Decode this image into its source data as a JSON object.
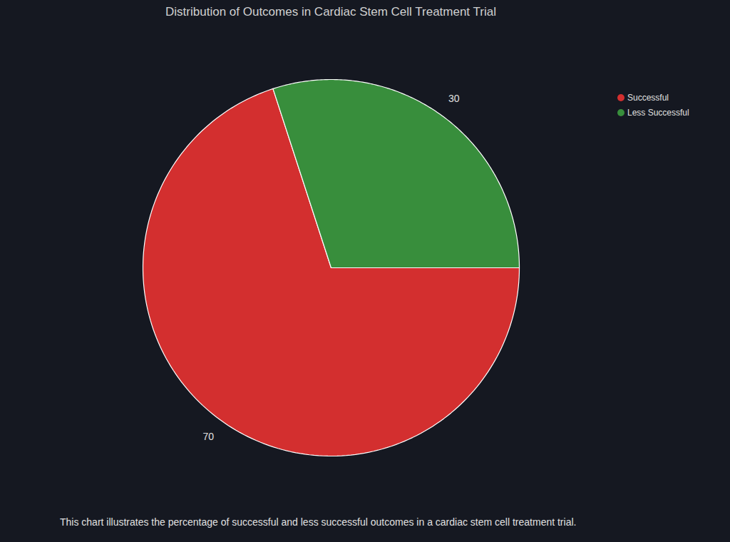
{
  "chart_data": {
    "type": "pie",
    "title": "Distribution of Outcomes in Cardiac Stem Cell Treatment Trial",
    "caption": "This chart illustrates the percentage of successful and less successful outcomes in a cardiac stem cell treatment trial.",
    "categories": [
      "Successful",
      "Less Successful"
    ],
    "values": [
      70,
      30
    ],
    "colors": [
      "#d32f2f",
      "#388e3c"
    ],
    "data_labels": true,
    "legend": "top-right"
  }
}
